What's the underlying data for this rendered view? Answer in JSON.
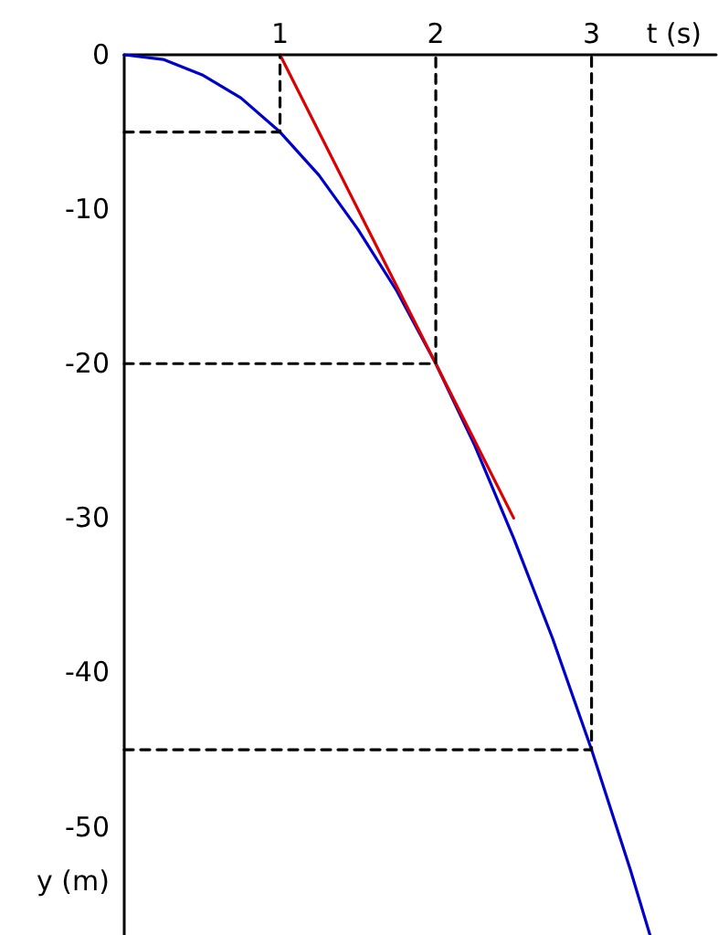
{
  "chart_data": {
    "type": "line",
    "xlabel": "t (s)",
    "ylabel": "y (m)",
    "xlim": [
      0,
      3.8
    ],
    "xticks": [
      1,
      2,
      3
    ],
    "ylim": [
      -57,
      0
    ],
    "yticks": [
      0,
      -10,
      -20,
      -30,
      -40,
      -50
    ],
    "grid": false,
    "marker": "none",
    "series": [
      {
        "color": "#0000cc",
        "line_style": "solid",
        "x": [
          0,
          0.25,
          0.5,
          0.75,
          1,
          1.25,
          1.5,
          1.75,
          2,
          2.25,
          2.5,
          2.75,
          3,
          3.25,
          3.375
        ],
        "values": [
          0,
          -0.3,
          -1.3,
          -2.8,
          -5,
          -7.8,
          -11.3,
          -15.3,
          -20,
          -25.3,
          -31.3,
          -37.8,
          -45,
          -52.8,
          -57
        ]
      },
      {
        "color": "#dd0000",
        "line_style": "solid",
        "x": [
          1,
          2.5
        ],
        "values": [
          0,
          -30
        ]
      },
      {
        "color": "#000000",
        "line_style": "dashed",
        "x": [
          0,
          1,
          1
        ],
        "values": [
          -5,
          -5,
          0
        ]
      },
      {
        "color": "#000000",
        "line_style": "dashed",
        "x": [
          0,
          2,
          2
        ],
        "values": [
          -20,
          -20,
          0
        ]
      },
      {
        "color": "#000000",
        "line_style": "dashed",
        "x": [
          0,
          3,
          3
        ],
        "values": [
          -45,
          -45,
          0
        ]
      }
    ]
  }
}
